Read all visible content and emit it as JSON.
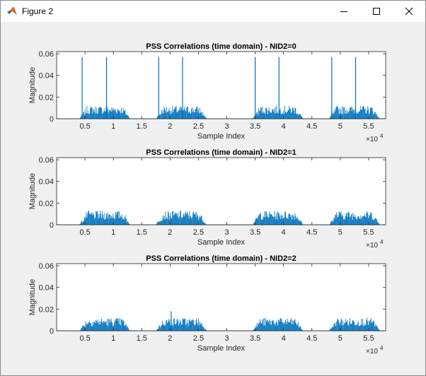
{
  "window": {
    "title": "Figure 2",
    "icon": "matlab-logo-icon",
    "controls": [
      "minimize-icon",
      "maximize-icon",
      "close-icon"
    ]
  },
  "axis_common": {
    "xlabel": "Sample Index",
    "ylabel": "Magnitude",
    "x_exponent": "×10",
    "x_exponent_power": "4",
    "x_ticks": [
      0.5,
      1,
      1.5,
      2,
      2.5,
      3,
      3.5,
      4,
      4.5,
      5,
      5.5
    ],
    "x_tick_labels": [
      "0.5",
      "1",
      "1.5",
      "2",
      "2.5",
      "3",
      "3.5",
      "4",
      "4.5",
      "5",
      "5.5"
    ],
    "y_ticks": [
      0,
      0.02,
      0.04,
      0.06
    ],
    "y_tick_labels": [
      "0",
      "0.02",
      "0.04",
      "0.06"
    ]
  },
  "chart_data": [
    {
      "type": "line",
      "title": "PSS Correlations (time domain) - NID2=0",
      "xlabel": "Sample Index",
      "ylabel": "Magnitude",
      "xlim": [
        0,
        5.8
      ],
      "ylim": [
        0,
        0.062
      ],
      "x_scale_note": "x values in units of 10^4 samples",
      "color": "#0072BD",
      "noise_bursts": [
        [
          0.4,
          1.3
        ],
        [
          1.75,
          2.65
        ],
        [
          3.45,
          4.35
        ],
        [
          4.8,
          5.7
        ]
      ],
      "burst_level": 0.012,
      "peaks": [
        [
          0.45,
          0.057
        ],
        [
          0.88,
          0.057
        ],
        [
          1.8,
          0.057
        ],
        [
          2.22,
          0.057
        ],
        [
          3.5,
          0.057
        ],
        [
          3.92,
          0.057
        ],
        [
          4.85,
          0.057
        ],
        [
          5.27,
          0.057
        ]
      ]
    },
    {
      "type": "line",
      "title": "PSS Correlations (time domain) - NID2=1",
      "xlabel": "Sample Index",
      "ylabel": "Magnitude",
      "xlim": [
        0,
        5.8
      ],
      "ylim": [
        0,
        0.062
      ],
      "x_scale_note": "x values in units of 10^4 samples",
      "color": "#0072BD",
      "noise_bursts": [
        [
          0.4,
          1.3
        ],
        [
          1.75,
          2.65
        ],
        [
          3.45,
          4.35
        ],
        [
          4.8,
          5.7
        ]
      ],
      "burst_level": 0.013,
      "peaks": []
    },
    {
      "type": "line",
      "title": "PSS Correlations (time domain) - NID2=2",
      "xlabel": "Sample Index",
      "ylabel": "Magnitude",
      "xlim": [
        0,
        5.8
      ],
      "ylim": [
        0,
        0.062
      ],
      "x_scale_note": "x values in units of 10^4 samples",
      "color": "#0072BD",
      "noise_bursts": [
        [
          0.4,
          1.3
        ],
        [
          1.75,
          2.65
        ],
        [
          3.45,
          4.35
        ],
        [
          4.8,
          5.7
        ]
      ],
      "burst_level": 0.012,
      "peaks": [
        [
          2.02,
          0.018
        ]
      ]
    }
  ]
}
